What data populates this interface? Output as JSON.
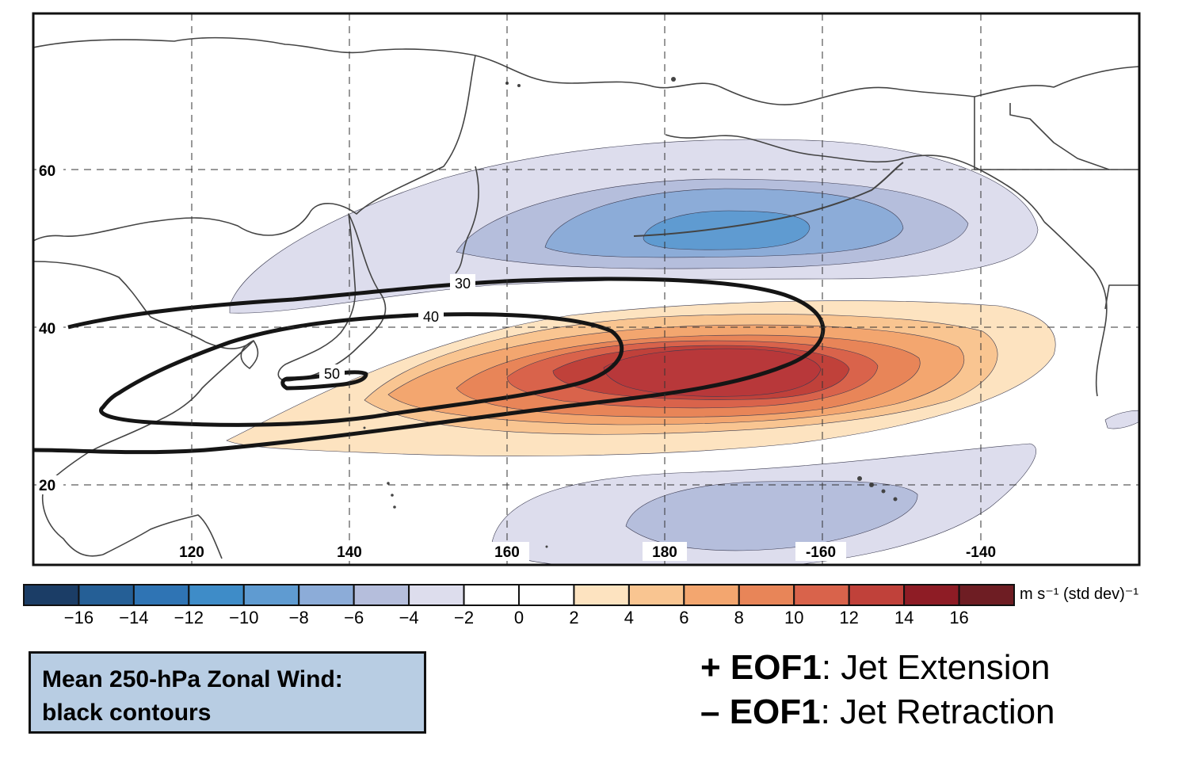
{
  "lat_labels": [
    "60",
    "40",
    "20"
  ],
  "lon_labels": [
    "120",
    "140",
    "160",
    "180",
    "-160",
    "-140"
  ],
  "jet_contours": [
    {
      "value": "30"
    },
    {
      "value": "40"
    },
    {
      "value": "50"
    }
  ],
  "colorbar": {
    "ticks": [
      "−16",
      "−14",
      "−12",
      "−10",
      "−8",
      "−6",
      "−4",
      "−2",
      "0",
      "2",
      "4",
      "6",
      "8",
      "10",
      "12",
      "14",
      "16"
    ],
    "colors": [
      "#1b3d66",
      "#255f96",
      "#2f74b4",
      "#3e8cc8",
      "#5f9bd1",
      "#8cacd8",
      "#b5bedc",
      "#dddded",
      "#ffffff",
      "#ffffff",
      "#fde3c0",
      "#f9c591",
      "#f3a66f",
      "#e88558",
      "#d9634b",
      "#c0413a",
      "#8e1c25",
      "#6e1d23"
    ],
    "units": "m s⁻¹ (std dev)⁻¹"
  },
  "legend_box": {
    "line1": "Mean 250-hPa Zonal Wind:",
    "line2": "black contours"
  },
  "eof_plus": {
    "sign": "+ ",
    "label": "EOF1",
    "text": ": Jet Extension"
  },
  "eof_minus": {
    "sign": "– ",
    "label": "EOF1",
    "text": ": Jet Retraction"
  }
}
